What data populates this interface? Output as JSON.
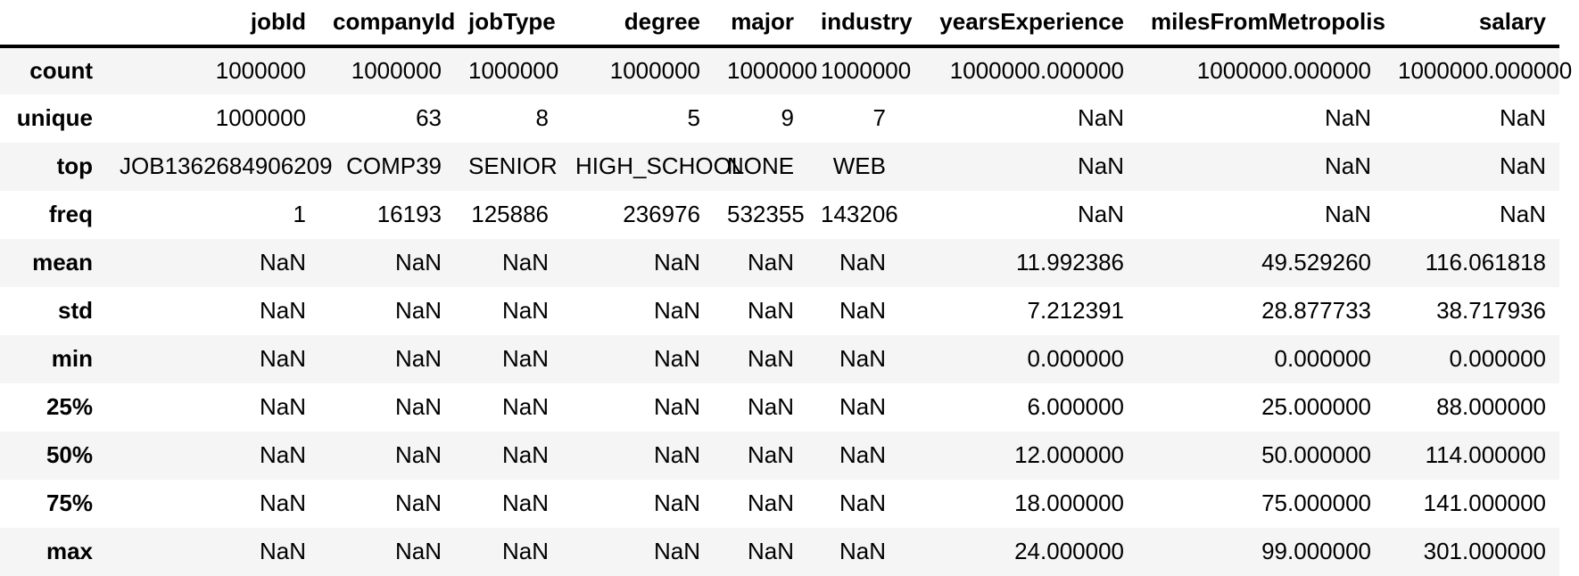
{
  "table": {
    "kind": "pandas-describe-output",
    "columns": [
      "",
      "jobId",
      "companyId",
      "jobType",
      "degree",
      "major",
      "industry",
      "yearsExperience",
      "milesFromMetropolis",
      "salary"
    ],
    "rows": [
      {
        "label": "count",
        "values": [
          "1000000",
          "1000000",
          "1000000",
          "1000000",
          "1000000",
          "1000000",
          "1000000.000000",
          "1000000.000000",
          "1000000.000000"
        ]
      },
      {
        "label": "unique",
        "values": [
          "1000000",
          "63",
          "8",
          "5",
          "9",
          "7",
          "NaN",
          "NaN",
          "NaN"
        ]
      },
      {
        "label": "top",
        "values": [
          "JOB1362684906209",
          "COMP39",
          "SENIOR",
          "HIGH_SCHOOL",
          "NONE",
          "WEB",
          "NaN",
          "NaN",
          "NaN"
        ]
      },
      {
        "label": "freq",
        "values": [
          "1",
          "16193",
          "125886",
          "236976",
          "532355",
          "143206",
          "NaN",
          "NaN",
          "NaN"
        ]
      },
      {
        "label": "mean",
        "values": [
          "NaN",
          "NaN",
          "NaN",
          "NaN",
          "NaN",
          "NaN",
          "11.992386",
          "49.529260",
          "116.061818"
        ]
      },
      {
        "label": "std",
        "values": [
          "NaN",
          "NaN",
          "NaN",
          "NaN",
          "NaN",
          "NaN",
          "7.212391",
          "28.877733",
          "38.717936"
        ]
      },
      {
        "label": "min",
        "values": [
          "NaN",
          "NaN",
          "NaN",
          "NaN",
          "NaN",
          "NaN",
          "0.000000",
          "0.000000",
          "0.000000"
        ]
      },
      {
        "label": "25%",
        "values": [
          "NaN",
          "NaN",
          "NaN",
          "NaN",
          "NaN",
          "NaN",
          "6.000000",
          "25.000000",
          "88.000000"
        ]
      },
      {
        "label": "50%",
        "values": [
          "NaN",
          "NaN",
          "NaN",
          "NaN",
          "NaN",
          "NaN",
          "12.000000",
          "50.000000",
          "114.000000"
        ]
      },
      {
        "label": "75%",
        "values": [
          "NaN",
          "NaN",
          "NaN",
          "NaN",
          "NaN",
          "NaN",
          "18.000000",
          "75.000000",
          "141.000000"
        ]
      },
      {
        "label": "max",
        "values": [
          "NaN",
          "NaN",
          "NaN",
          "NaN",
          "NaN",
          "NaN",
          "24.000000",
          "99.000000",
          "301.000000"
        ]
      }
    ],
    "colors": {
      "background": "#ffffff",
      "stripe": "#f5f5f5",
      "text": "#000000",
      "header_rule": "#000000"
    }
  }
}
